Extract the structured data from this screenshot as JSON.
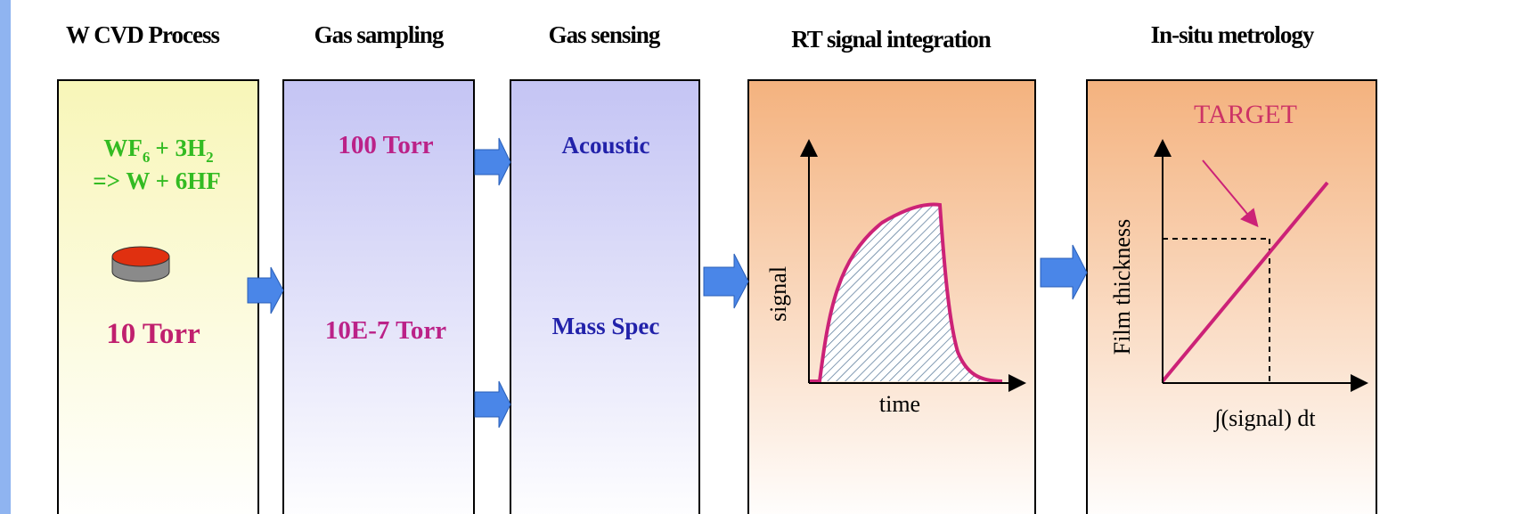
{
  "stages": [
    {
      "title": "W CVD Process",
      "reaction": {
        "part1": "WF",
        "sub1": "6",
        "part2": "+ 3H",
        "sub2": "2",
        "line2": "=> W + 6HF"
      },
      "pressure": "10 Torr"
    },
    {
      "title": "Gas sampling",
      "pressures": [
        "100 Torr",
        "10E-7 Torr"
      ]
    },
    {
      "title": "Gas sensing",
      "sensors": [
        "Acoustic",
        "Mass Spec"
      ]
    },
    {
      "title": "RT signal integration",
      "y_label": "signal",
      "x_label": "time"
    },
    {
      "title": "In-situ metrology",
      "annotation": "TARGET",
      "y_label": "Film thickness",
      "x_label": "∫(signal) dt"
    }
  ]
}
